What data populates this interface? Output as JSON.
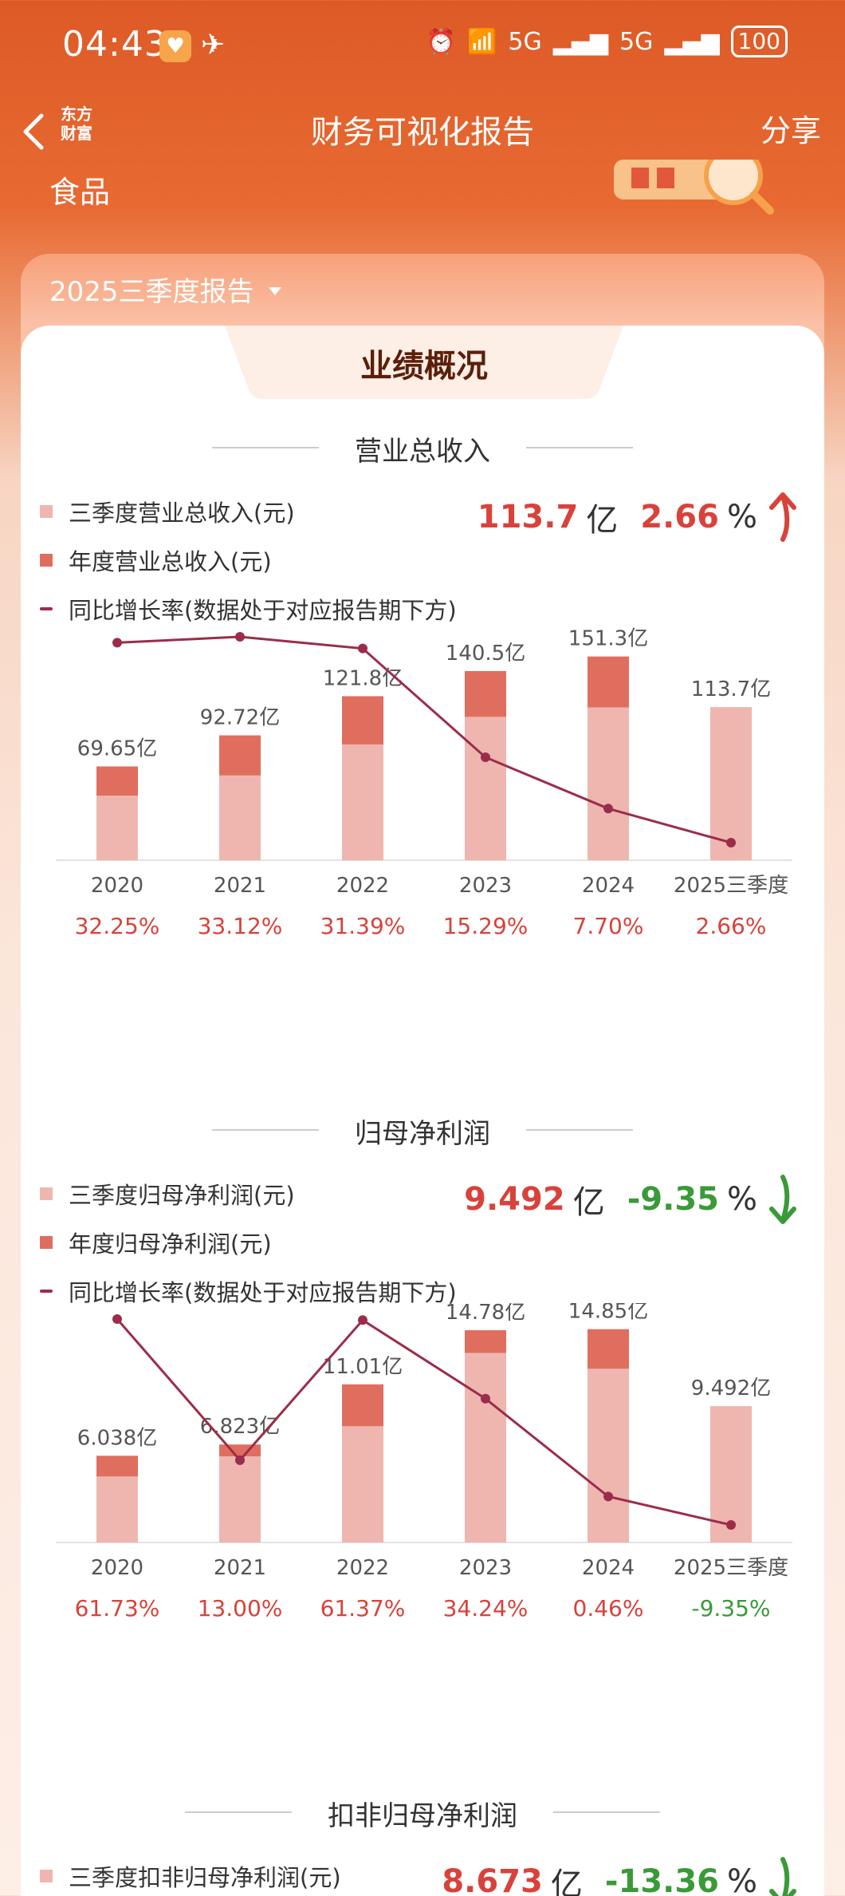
{
  "status": {
    "time": "04:43",
    "signal1": "5G",
    "signal2": "5G",
    "battery": "100"
  },
  "nav": {
    "title": "财务可视化报告",
    "share": "分享",
    "brand": "东方财富"
  },
  "company_name": "食品",
  "period": "2025三季度报告",
  "section_title": "业绩概况",
  "sections": [
    {
      "title": "营业总收入",
      "legend": [
        "三季度营业总收入(元)",
        "年度营业总收入(元)",
        "同比增长率(数据处于对应报告期下方)"
      ],
      "kpi_value": "113.7",
      "kpi_unit": "亿",
      "kpi_change": "2.66",
      "kpi_pct": "%"
    },
    {
      "title": "归母净利润",
      "legend": [
        "三季度归母净利润(元)",
        "年度归母净利润(元)",
        "同比增长率(数据处于对应报告期下方)"
      ],
      "kpi_value": "9.492",
      "kpi_unit": "亿",
      "kpi_change": "-9.35",
      "kpi_pct": "%"
    },
    {
      "title": "扣非归母净利润",
      "legend": [
        "三季度扣非归母净利润(元)"
      ],
      "kpi_value": "8.673",
      "kpi_unit": "亿",
      "kpi_change": "-13.36",
      "kpi_pct": "%"
    }
  ],
  "colors": {
    "q3_bar": "#efb6b0",
    "annual_bar": "#e06e5e",
    "growth_line": "#9b2d4b",
    "up": "#d8423b",
    "down": "#3a9a38"
  },
  "chart_data": [
    {
      "type": "bar",
      "categories": [
        "2020",
        "2021",
        "2022",
        "2023",
        "2024",
        "2025三季度"
      ],
      "series": [
        {
          "name": "三季度营业总收入(元)",
          "values": [
            48.0,
            63.0,
            86.0,
            106.5,
            113.5,
            113.7
          ]
        },
        {
          "name": "年度营业总收入(元)",
          "values": [
            69.65,
            92.72,
            121.8,
            140.5,
            151.3,
            null
          ]
        }
      ],
      "bar_labels": [
        "69.65亿",
        "92.72亿",
        "121.8亿",
        "140.5亿",
        "151.3亿",
        "113.7亿"
      ],
      "growth_labels": [
        "32.25%",
        "33.12%",
        "31.39%",
        "15.29%",
        "7.70%",
        "2.66%"
      ],
      "growth": [
        32.25,
        33.12,
        31.39,
        15.29,
        7.7,
        2.66
      ],
      "ylim": [
        0,
        160
      ]
    },
    {
      "type": "bar",
      "categories": [
        "2020",
        "2021",
        "2022",
        "2023",
        "2024",
        "2025三季度"
      ],
      "series": [
        {
          "name": "三季度归母净利润(元)",
          "values": [
            4.6,
            6.0,
            8.1,
            13.2,
            12.1,
            9.492
          ]
        },
        {
          "name": "年度归母净利润(元)",
          "values": [
            6.038,
            6.823,
            11.01,
            14.78,
            14.85,
            null
          ]
        }
      ],
      "bar_labels": [
        "6.038亿",
        "6.823亿",
        "11.01亿",
        "14.78亿",
        "14.85亿",
        "9.492亿"
      ],
      "growth_labels": [
        "61.73%",
        "13.00%",
        "61.37%",
        "34.24%",
        "0.46%",
        "-9.35%"
      ],
      "growth": [
        61.73,
        13.0,
        61.37,
        34.24,
        0.46,
        -9.35
      ],
      "ylim": [
        0,
        15
      ]
    }
  ]
}
